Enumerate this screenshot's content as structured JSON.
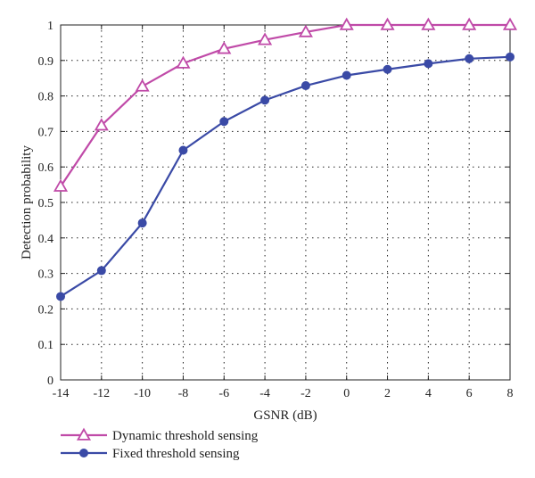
{
  "chart_data": {
    "type": "line",
    "title": "",
    "xlabel": "GSNR (dB)",
    "ylabel": "Detection probability",
    "x": [
      -14,
      -12,
      -10,
      -8,
      -6,
      -4,
      -2,
      0,
      2,
      4,
      6,
      8
    ],
    "xlim": [
      -14,
      8
    ],
    "ylim": [
      0,
      1
    ],
    "xticks": [
      "-14",
      "-12",
      "-10",
      "-8",
      "-6",
      "-4",
      "-2",
      "0",
      "2",
      "4",
      "6",
      "8"
    ],
    "yticks": [
      "0",
      "0.1",
      "0.2",
      "0.3",
      "0.4",
      "0.5",
      "0.6",
      "0.7",
      "0.8",
      "0.9",
      "1"
    ],
    "grid": true,
    "legend_position": "bottom-left, below plot",
    "series": [
      {
        "name": "Dynamic threshold sensing",
        "marker": "triangle",
        "color": "#c04aa8",
        "values": [
          0.545,
          0.717,
          0.827,
          0.892,
          0.933,
          0.958,
          0.98,
          1.0,
          1.0,
          1.0,
          1.0,
          1.0
        ]
      },
      {
        "name": "Fixed threshold sensing",
        "marker": "circle",
        "color": "#3a4aa6",
        "values": [
          0.235,
          0.308,
          0.442,
          0.647,
          0.728,
          0.788,
          0.829,
          0.858,
          0.875,
          0.891,
          0.905,
          0.91
        ]
      }
    ]
  }
}
